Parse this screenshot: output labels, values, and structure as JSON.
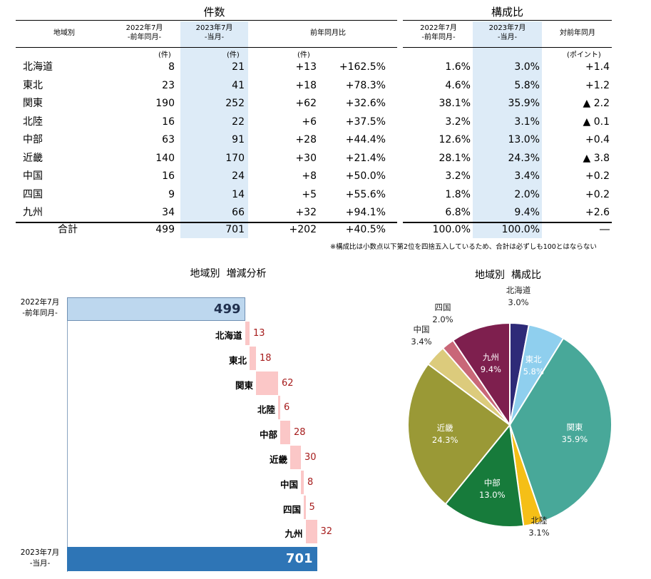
{
  "table": {
    "count_title": "件数",
    "ratio_title": "構成比",
    "headers": {
      "region": "地域別",
      "prev_l1": "2022年7月",
      "prev_l2": "-前年同月-",
      "curr_l1": "2023年7月",
      "curr_l2": "-当月-",
      "yoy": "前年同月比",
      "ratio_prev_l1": "2022年7月",
      "ratio_prev_l2": "-前年同月-",
      "ratio_curr_l1": "2023年7月",
      "ratio_curr_l2": "-当月-",
      "ratio_diff": "対前年同月"
    },
    "units": {
      "prev": "(件)",
      "curr": "(件)",
      "yoy": "(件)",
      "point": "(ポイント)"
    },
    "rows": [
      {
        "region": "北海道",
        "prev": "8",
        "curr": "21",
        "diff": "+13",
        "pct": "+162.5%",
        "r_prev": "1.6%",
        "r_curr": "3.0%",
        "r_diff": "+1.4"
      },
      {
        "region": "東北",
        "prev": "23",
        "curr": "41",
        "diff": "+18",
        "pct": "+78.3%",
        "r_prev": "4.6%",
        "r_curr": "5.8%",
        "r_diff": "+1.2"
      },
      {
        "region": "関東",
        "prev": "190",
        "curr": "252",
        "diff": "+62",
        "pct": "+32.6%",
        "r_prev": "38.1%",
        "r_curr": "35.9%",
        "r_diff": "▲ 2.2"
      },
      {
        "region": "北陸",
        "prev": "16",
        "curr": "22",
        "diff": "+6",
        "pct": "+37.5%",
        "r_prev": "3.2%",
        "r_curr": "3.1%",
        "r_diff": "▲ 0.1"
      },
      {
        "region": "中部",
        "prev": "63",
        "curr": "91",
        "diff": "+28",
        "pct": "+44.4%",
        "r_prev": "12.6%",
        "r_curr": "13.0%",
        "r_diff": "+0.4"
      },
      {
        "region": "近畿",
        "prev": "140",
        "curr": "170",
        "diff": "+30",
        "pct": "+21.4%",
        "r_prev": "28.1%",
        "r_curr": "24.3%",
        "r_diff": "▲ 3.8"
      },
      {
        "region": "中国",
        "prev": "16",
        "curr": "24",
        "diff": "+8",
        "pct": "+50.0%",
        "r_prev": "3.2%",
        "r_curr": "3.4%",
        "r_diff": "+0.2"
      },
      {
        "region": "四国",
        "prev": "9",
        "curr": "14",
        "diff": "+5",
        "pct": "+55.6%",
        "r_prev": "1.8%",
        "r_curr": "2.0%",
        "r_diff": "+0.2"
      },
      {
        "region": "九州",
        "prev": "34",
        "curr": "66",
        "diff": "+32",
        "pct": "+94.1%",
        "r_prev": "6.8%",
        "r_curr": "9.4%",
        "r_diff": "+2.6"
      }
    ],
    "total": {
      "region": "合計",
      "prev": "499",
      "curr": "701",
      "diff": "+202",
      "pct": "+40.5%",
      "r_prev": "100.0%",
      "r_curr": "100.0%",
      "r_diff": "―"
    },
    "note": "※構成比は小数点以下第2位を四捨五入しているため、合計は必ずしも100とはならない"
  },
  "colors": {
    "highlight": "#ddebf7",
    "start_bar": "#bdd7ee",
    "end_bar": "#2e75b6",
    "step_bar": "#fbc7c7",
    "step_text": "#a61c1c"
  },
  "chart_data": [
    {
      "type": "bar",
      "subtype": "waterfall",
      "title": "地域別  増減分析",
      "start": {
        "label_l1": "2022年7月",
        "label_l2": "-前年同月-",
        "value": 499
      },
      "end": {
        "label_l1": "2023年7月",
        "label_l2": "-当月-",
        "value": 701
      },
      "categories": [
        "北海道",
        "東北",
        "関東",
        "北陸",
        "中部",
        "近畿",
        "中国",
        "四国",
        "九州"
      ],
      "values": [
        13,
        18,
        62,
        6,
        28,
        30,
        8,
        5,
        32
      ]
    },
    {
      "type": "pie",
      "title": "地域別  構成比",
      "slices": [
        {
          "label": "北海道",
          "value": 3.0,
          "pct": "3.0%",
          "color": "#2e2a78"
        },
        {
          "label": "東北",
          "value": 5.8,
          "pct": "5.8%",
          "color": "#8fcfee"
        },
        {
          "label": "関東",
          "value": 35.9,
          "pct": "35.9%",
          "color": "#48a899"
        },
        {
          "label": "北陸",
          "value": 3.1,
          "pct": "3.1%",
          "color": "#f5bf17"
        },
        {
          "label": "中部",
          "value": 13.0,
          "pct": "13.0%",
          "color": "#177b3b"
        },
        {
          "label": "近畿",
          "value": 24.3,
          "pct": "24.3%",
          "color": "#9a9936"
        },
        {
          "label": "中国",
          "value": 3.4,
          "pct": "3.4%",
          "color": "#dccb7c"
        },
        {
          "label": "四国",
          "value": 2.0,
          "pct": "2.0%",
          "color": "#c96778"
        },
        {
          "label": "九州",
          "value": 9.4,
          "pct": "9.4%",
          "color": "#7e1f4e"
        }
      ]
    }
  ]
}
